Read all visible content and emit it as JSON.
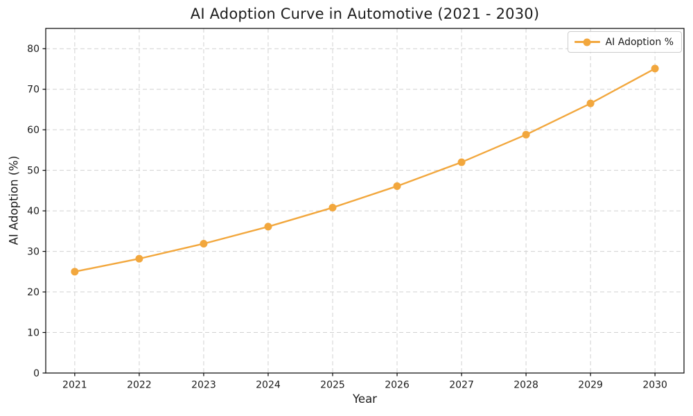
{
  "chart_data": {
    "type": "line",
    "title": "AI Adoption Curve in Automotive (2021 - 2030)",
    "xlabel": "Year",
    "ylabel": "AI Adoption (%)",
    "x": [
      2021,
      2022,
      2023,
      2024,
      2025,
      2026,
      2027,
      2028,
      2029,
      2030
    ],
    "series": [
      {
        "name": "AI Adoption %",
        "values": [
          25.0,
          28.2,
          31.9,
          36.1,
          40.8,
          46.1,
          52.0,
          58.8,
          66.5,
          75.1
        ],
        "color": "#F2A73D",
        "marker": "circle",
        "line_style": "solid"
      }
    ],
    "ylim": [
      0,
      85
    ],
    "yticks": [
      0,
      10,
      20,
      30,
      40,
      50,
      60,
      70,
      80
    ],
    "grid": true,
    "grid_style": "dashed",
    "legend_position": "upper right",
    "legend_entries": [
      "AI Adoption %"
    ]
  },
  "colors": {
    "accent_line": "#F2A73D",
    "grid": "#d1d1d1",
    "spine": "#000000",
    "text": "#1a1a1a",
    "legend_border": "#cccccc",
    "background": "#ffffff"
  }
}
